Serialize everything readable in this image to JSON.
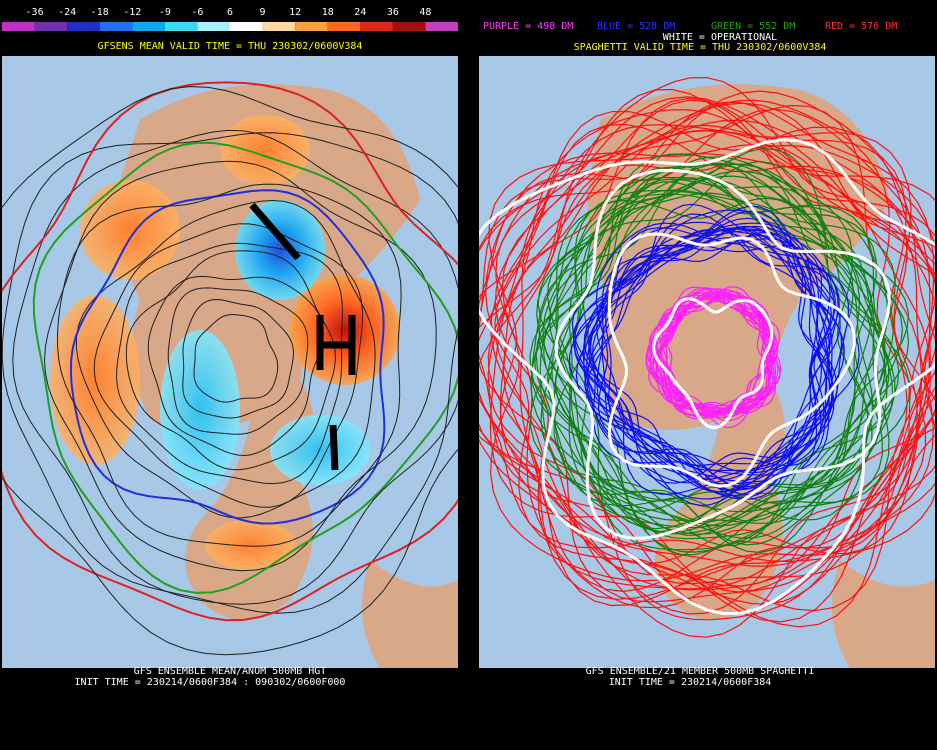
{
  "left_panel": {
    "colorbar": {
      "labels": [
        "-36",
        "-24",
        "-18",
        "-12",
        "-9",
        "-6",
        "6",
        "9",
        "12",
        "18",
        "24",
        "36",
        "48"
      ],
      "colors": [
        "#c030c8",
        "#7030b0",
        "#2030c0",
        "#2070f0",
        "#10a8f0",
        "#40d8f8",
        "#a8f0ff",
        "#ffffff",
        "#ffd8a0",
        "#ffa040",
        "#ff6a20",
        "#e02818",
        "#a01010",
        "#c040c0"
      ]
    },
    "header": "GFSENS MEAN VALID TIME = THU 230302/0600V384",
    "footer": [
      "GFS ENSEMBLE MEAN/ANOM 500MB HGT",
      "INIT TIME = 230214/0600F384 : 090302/0600F000"
    ]
  },
  "right_panel": {
    "legend": [
      {
        "label": "PURPLE = 498 DM",
        "color": "#ff40ff"
      },
      {
        "label": "BLUE = 528 DM",
        "color": "#3030ff"
      },
      {
        "label": "GREEN = 552 DM",
        "color": "#20a020"
      },
      {
        "label": "RED = 576 DM",
        "color": "#ff3030"
      }
    ],
    "operational": "WHITE = OPERATIONAL",
    "header": "SPAGHETTI VALID TIME = THU 230302/0600V384",
    "footer": [
      "GFS ENSEMBLE/21 MEMBER 500MB SPAGHETTI",
      "INIT TIME = 230214/0600F384"
    ]
  }
}
